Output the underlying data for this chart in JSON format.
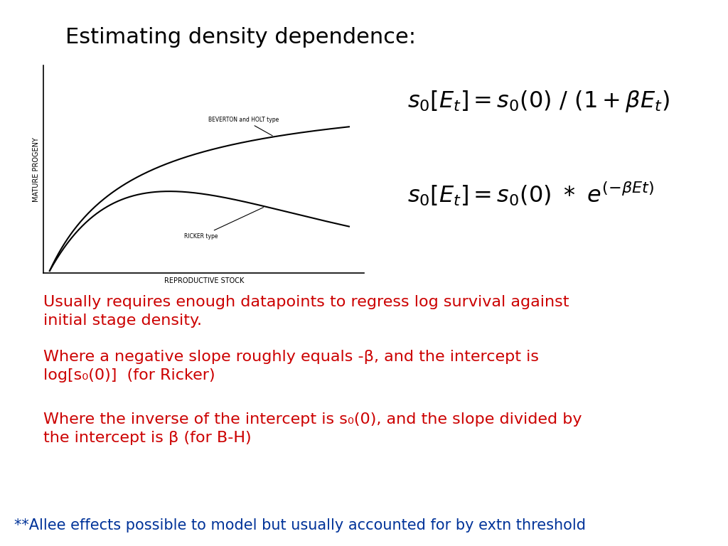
{
  "title": "Estimating density dependence:",
  "title_fontsize": 22,
  "title_color": "#000000",
  "bg_color": "#ffffff",
  "bh_label": "BEVERTON and HOLT type",
  "ricker_label": "RICKER type",
  "xlabel": "REPRODUCTIVE STOCK",
  "ylabel": "MATURE PROGENY",
  "text1_color": "#cc0000",
  "text2_color": "#003399",
  "text1": "Usually requires enough datapoints to regress log survival against\ninitial stage density.",
  "text2": "Where a negative slope roughly equals -β, and the intercept is\nlog[s₀(0)]  (for Ricker)",
  "text3": "Where the inverse of the intercept is s₀(0), and the slope divided by\nthe intercept is β (for B-H)",
  "text4": "**Allee effects possible to model but usually accounted for by extn threshold",
  "text_fontsize": 16,
  "footnote_fontsize": 15
}
